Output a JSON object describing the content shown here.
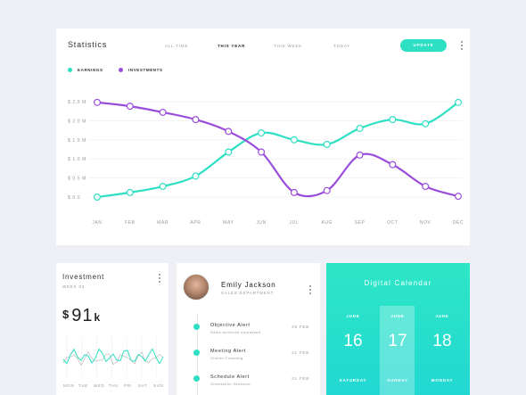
{
  "statistics": {
    "title": "Statistics",
    "tabs": [
      "ALL TIME",
      "THIS YEAR",
      "THIS WEEK",
      "TODAY"
    ],
    "active_tab": "THIS YEAR",
    "update_label": "UPDATE",
    "legend": [
      "EARNINGS",
      "INVESTMENTS"
    ],
    "colors": {
      "earnings": "#2ee0c3",
      "investments": "#9a4ddb"
    }
  },
  "chart_data": {
    "type": "line",
    "categories": [
      "JAN",
      "FEB",
      "MAR",
      "APR",
      "MAY",
      "JUN",
      "JUL",
      "AUG",
      "SEP",
      "OCT",
      "NOV",
      "DEC"
    ],
    "y_tick_labels": [
      "$ 0.0",
      "$ 0.5 M",
      "$ 1.0 M",
      "$ 1.5 M",
      "$ 2.0 M",
      "$ 2.5 M"
    ],
    "ylim": [
      0,
      2.5
    ],
    "grid": true,
    "legend_position": "top-left",
    "series": [
      {
        "name": "EARNINGS",
        "values": [
          0.0,
          0.12,
          0.28,
          0.55,
          1.18,
          1.68,
          1.5,
          1.38,
          1.8,
          2.03,
          1.92,
          2.48
        ]
      },
      {
        "name": "INVESTMENTS",
        "values": [
          2.48,
          2.38,
          2.22,
          2.03,
          1.72,
          1.18,
          0.12,
          0.17,
          1.1,
          0.85,
          0.28,
          0.02
        ]
      }
    ]
  },
  "investment": {
    "title": "Investment",
    "week": "WEEK 03",
    "currency": "$",
    "amount": "91",
    "unit": "k",
    "days": [
      "MON",
      "TUE",
      "WED",
      "THU",
      "FRI",
      "SAT",
      "SUN"
    ],
    "sparkline_color": "#2ee0c3"
  },
  "contact": {
    "name": "Emily Jackson",
    "department": "SALES DEPARTMENT",
    "alerts": [
      {
        "title": "Objective Alert",
        "subtitle": "Sales achieved surpassed",
        "date": "25 FEB"
      },
      {
        "title": "Meeting Alert",
        "subtitle": "Clients Coaching",
        "date": "21 FEB"
      },
      {
        "title": "Schedule Alert",
        "subtitle": "Orientation Sessions",
        "date": "21 FEB"
      }
    ]
  },
  "calendar": {
    "title": "Digital Calendar",
    "days": [
      {
        "month": "JUNE",
        "date": "16",
        "weekday": "SATURDAY"
      },
      {
        "month": "JUNE",
        "date": "17",
        "weekday": "SUNDAY"
      },
      {
        "month": "JUNE",
        "date": "18",
        "weekday": "MONDAY"
      }
    ]
  }
}
